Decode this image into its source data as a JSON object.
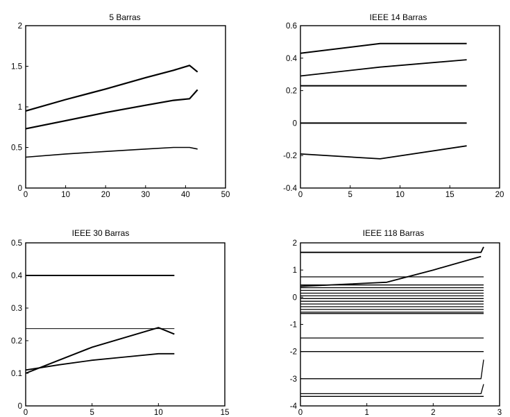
{
  "chart_data": [
    {
      "type": "line",
      "title": "5 Barras",
      "xlim": [
        0,
        50
      ],
      "ylim": [
        0,
        2
      ],
      "xticks": [
        "0",
        "10",
        "20",
        "30",
        "40",
        "50"
      ],
      "yticks": [
        "0",
        "0.5",
        "1",
        "1.5",
        "2"
      ],
      "series": [
        {
          "x": [
            0,
            10,
            20,
            30,
            37,
            41,
            43
          ],
          "y": [
            0.95,
            1.09,
            1.22,
            1.36,
            1.45,
            1.51,
            1.43
          ]
        },
        {
          "x": [
            0,
            10,
            20,
            30,
            37,
            41,
            43
          ],
          "y": [
            0.73,
            0.83,
            0.93,
            1.02,
            1.08,
            1.1,
            1.21
          ]
        },
        {
          "x": [
            0,
            10,
            20,
            30,
            37,
            41,
            43
          ],
          "y": [
            0.38,
            0.42,
            0.45,
            0.48,
            0.5,
            0.5,
            0.48
          ]
        }
      ]
    },
    {
      "type": "line",
      "title": "IEEE 14 Barras",
      "xlim": [
        0,
        20
      ],
      "ylim": [
        -0.4,
        0.6
      ],
      "xticks": [
        "0",
        "5",
        "10",
        "15",
        "20"
      ],
      "yticks": [
        "-0.4",
        "-0.2",
        "0",
        "0.2",
        "0.4",
        "0.6"
      ],
      "series": [
        {
          "x": [
            0,
            8,
            16.7
          ],
          "y": [
            0.43,
            0.49,
            0.49
          ]
        },
        {
          "x": [
            0,
            8,
            16.7
          ],
          "y": [
            0.29,
            0.345,
            0.39
          ]
        },
        {
          "x": [
            0,
            16.7
          ],
          "y": [
            0.23,
            0.23
          ]
        },
        {
          "x": [
            0,
            16.7
          ],
          "y": [
            0.0,
            0.0
          ]
        },
        {
          "x": [
            0,
            8,
            16.7
          ],
          "y": [
            -0.19,
            -0.22,
            -0.14
          ]
        }
      ]
    },
    {
      "type": "line",
      "title": "IEEE 30 Barras",
      "xlim": [
        0,
        15
      ],
      "ylim": [
        0,
        0.5
      ],
      "xticks": [
        "0",
        "5",
        "10",
        "15"
      ],
      "yticks": [
        "0",
        "0.1",
        "0.2",
        "0.3",
        "0.4",
        "0.5"
      ],
      "series": [
        {
          "x": [
            0,
            11.2
          ],
          "y": [
            0.4,
            0.4
          ]
        },
        {
          "x": [
            0,
            11.2
          ],
          "y": [
            0.237,
            0.237
          ]
        },
        {
          "x": [
            0,
            2.5,
            5,
            7.5,
            10,
            11.2
          ],
          "y": [
            0.1,
            0.14,
            0.18,
            0.21,
            0.24,
            0.22
          ]
        },
        {
          "x": [
            0,
            2.5,
            5,
            7.5,
            10,
            11.2
          ],
          "y": [
            0.11,
            0.126,
            0.14,
            0.15,
            0.16,
            0.16
          ]
        }
      ]
    },
    {
      "type": "line",
      "title": "IEEE 118 Barras",
      "xlim": [
        0,
        3
      ],
      "ylim": [
        -4,
        2
      ],
      "xticks": [
        "0",
        "1",
        "2",
        "3"
      ],
      "yticks": [
        "-4",
        "-3",
        "-2",
        "-1",
        "0",
        "1",
        "2"
      ],
      "series": [
        {
          "x": [
            0,
            2.72,
            2.76
          ],
          "y": [
            1.65,
            1.65,
            1.85
          ]
        },
        {
          "x": [
            0,
            1.3,
            2.0,
            2.72
          ],
          "y": [
            0.4,
            0.55,
            1.0,
            1.5
          ]
        },
        {
          "x": [
            0,
            2.76
          ],
          "y": [
            0.75,
            0.75
          ]
        },
        {
          "x": [
            0,
            2.76
          ],
          "y": [
            0.45,
            0.45
          ]
        },
        {
          "x": [
            0,
            2.76
          ],
          "y": [
            0.35,
            0.35
          ]
        },
        {
          "x": [
            0,
            2.76
          ],
          "y": [
            0.25,
            0.25
          ]
        },
        {
          "x": [
            0,
            2.76
          ],
          "y": [
            0.15,
            0.15
          ]
        },
        {
          "x": [
            0,
            2.76
          ],
          "y": [
            0.05,
            0.05
          ]
        },
        {
          "x": [
            0,
            2.76
          ],
          "y": [
            -0.05,
            -0.05
          ]
        },
        {
          "x": [
            0,
            2.76
          ],
          "y": [
            -0.15,
            -0.15
          ]
        },
        {
          "x": [
            0,
            2.76
          ],
          "y": [
            -0.25,
            -0.25
          ]
        },
        {
          "x": [
            0,
            2.76
          ],
          "y": [
            -0.35,
            -0.35
          ]
        },
        {
          "x": [
            0,
            2.76
          ],
          "y": [
            -0.45,
            -0.45
          ]
        },
        {
          "x": [
            0,
            2.76
          ],
          "y": [
            -0.55,
            -0.55
          ]
        },
        {
          "x": [
            0,
            2.76
          ],
          "y": [
            -0.6,
            -0.6
          ]
        },
        {
          "x": [
            0,
            2.76
          ],
          "y": [
            -1.5,
            -1.5
          ]
        },
        {
          "x": [
            0,
            2.76
          ],
          "y": [
            -2.0,
            -2.0
          ]
        },
        {
          "x": [
            0,
            2.72,
            2.76
          ],
          "y": [
            -3.0,
            -3.0,
            -2.3
          ]
        },
        {
          "x": [
            0,
            2.72,
            2.76
          ],
          "y": [
            -3.55,
            -3.55,
            -3.2
          ]
        },
        {
          "x": [
            0,
            2.76
          ],
          "y": [
            -3.65,
            -3.65
          ]
        }
      ]
    }
  ]
}
